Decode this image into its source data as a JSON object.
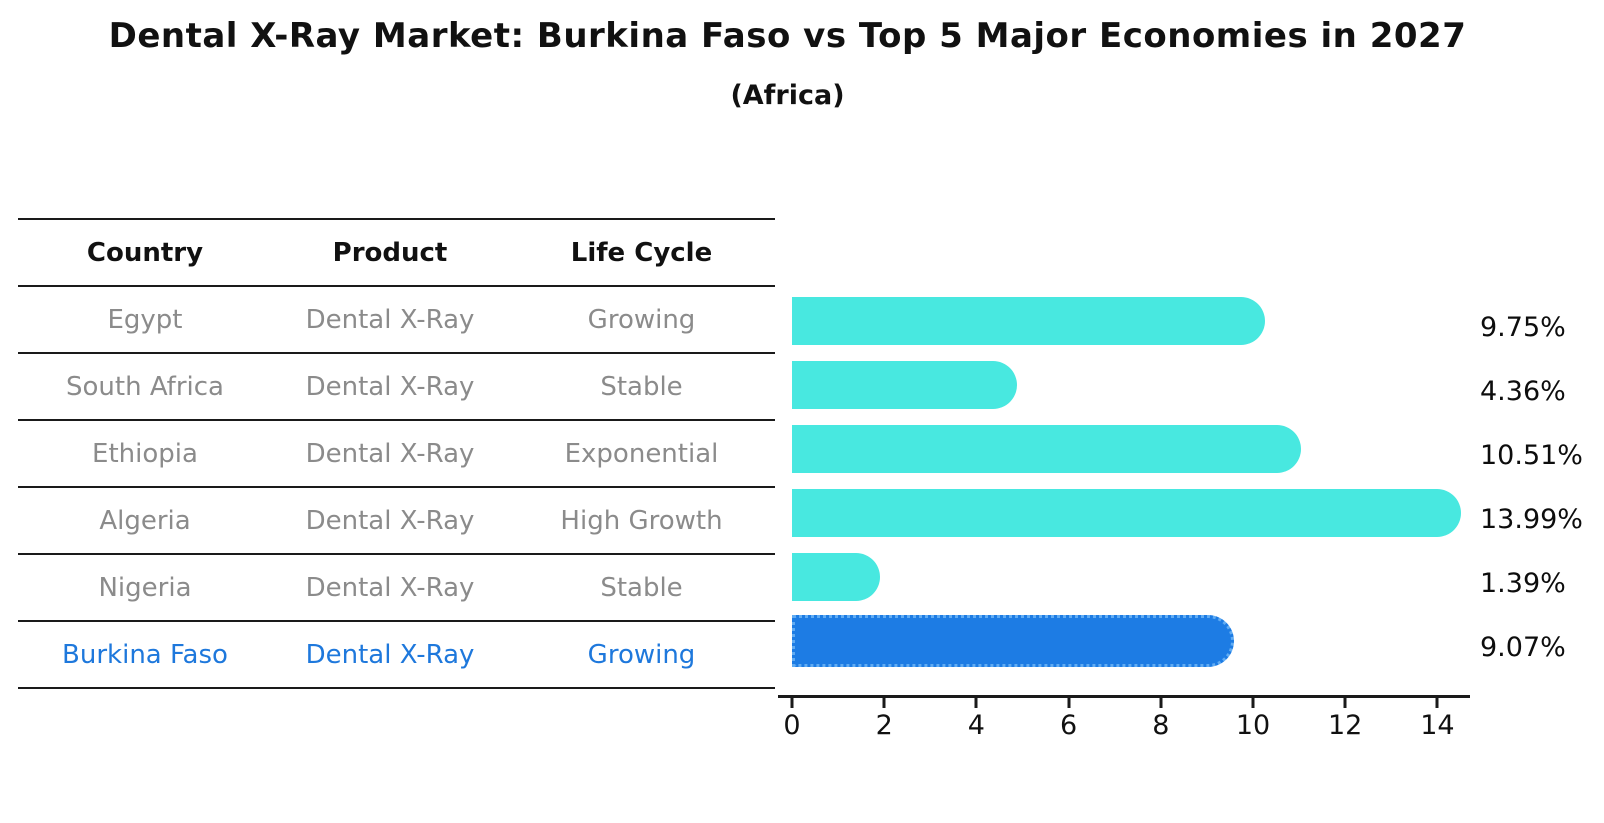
{
  "header": {
    "title": "Dental X-Ray Market: Burkina Faso vs Top 5 Major Economies in 2027",
    "subtitle": "(Africa)"
  },
  "table": {
    "headers": [
      "Country",
      "Product",
      "Life Cycle"
    ],
    "rows": [
      {
        "country": "Egypt",
        "product": "Dental X-Ray",
        "life_cycle": "Growing",
        "highlight": false
      },
      {
        "country": "South Africa",
        "product": "Dental X-Ray",
        "life_cycle": "Stable",
        "highlight": false
      },
      {
        "country": "Ethiopia",
        "product": "Dental X-Ray",
        "life_cycle": "Exponential",
        "highlight": false
      },
      {
        "country": "Algeria",
        "product": "Dental X-Ray",
        "life_cycle": "High Growth",
        "highlight": false
      },
      {
        "country": "Nigeria",
        "product": "Dental X-Ray",
        "life_cycle": "Stable",
        "highlight": false
      },
      {
        "country": "Burkina Faso",
        "product": "Dental X-Ray",
        "life_cycle": "Growing",
        "highlight": true
      }
    ]
  },
  "chart_data": {
    "type": "bar",
    "orientation": "horizontal",
    "title": "Dental X-Ray Market: Burkina Faso vs Top 5 Major Economies in 2027",
    "subtitle": "(Africa)",
    "categories": [
      "Egypt",
      "South Africa",
      "Ethiopia",
      "Algeria",
      "Nigeria",
      "Burkina Faso"
    ],
    "values": [
      9.75,
      4.36,
      10.51,
      13.99,
      1.39,
      9.07
    ],
    "value_labels": [
      "9.75%",
      "4.36%",
      "10.51%",
      "13.99%",
      "1.39%",
      "9.07%"
    ],
    "x_ticks": [
      0,
      2,
      4,
      6,
      8,
      10,
      12,
      14
    ],
    "xlim": [
      0,
      14.7
    ],
    "grid": false,
    "legend": false,
    "highlight_index": 5
  },
  "colors": {
    "bar": "#48e8e0",
    "highlight_bar": "#1d7ce4",
    "highlight_bar_border": "#61acf3",
    "highlight_text": "#1e78dc",
    "table_text": "#8b8b8b",
    "axis": "#1a1a1a"
  }
}
